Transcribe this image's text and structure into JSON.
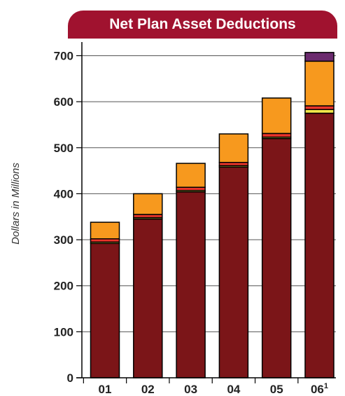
{
  "chart_data": {
    "type": "bar",
    "stacked": true,
    "title": "Net Plan Asset Deductions",
    "xlabel": "",
    "ylabel": "Dollars in Millions",
    "categories": [
      "01",
      "02",
      "03",
      "04",
      "05",
      "06"
    ],
    "category_superscripts": [
      "",
      "",
      "",
      "",
      "",
      "1"
    ],
    "ylim": [
      0,
      710
    ],
    "yticks": [
      0,
      100,
      200,
      300,
      400,
      500,
      600,
      700
    ],
    "grid": true,
    "series": [
      {
        "values": [
          292,
          345,
          404,
          458,
          520,
          575
        ],
        "color": "#7b1518"
      },
      {
        "values": [
          3,
          3,
          3,
          3,
          3,
          8
        ],
        "color": "#f4e84a"
      },
      {
        "values": [
          7,
          7,
          7,
          7,
          8,
          8
        ],
        "color": "#e8342a"
      },
      {
        "values": [
          36,
          45,
          52,
          62,
          77,
          97
        ],
        "color": "#f7991e"
      },
      {
        "values": [
          0,
          0,
          0,
          0,
          0,
          19
        ],
        "color": "#6b2a6e"
      }
    ]
  }
}
